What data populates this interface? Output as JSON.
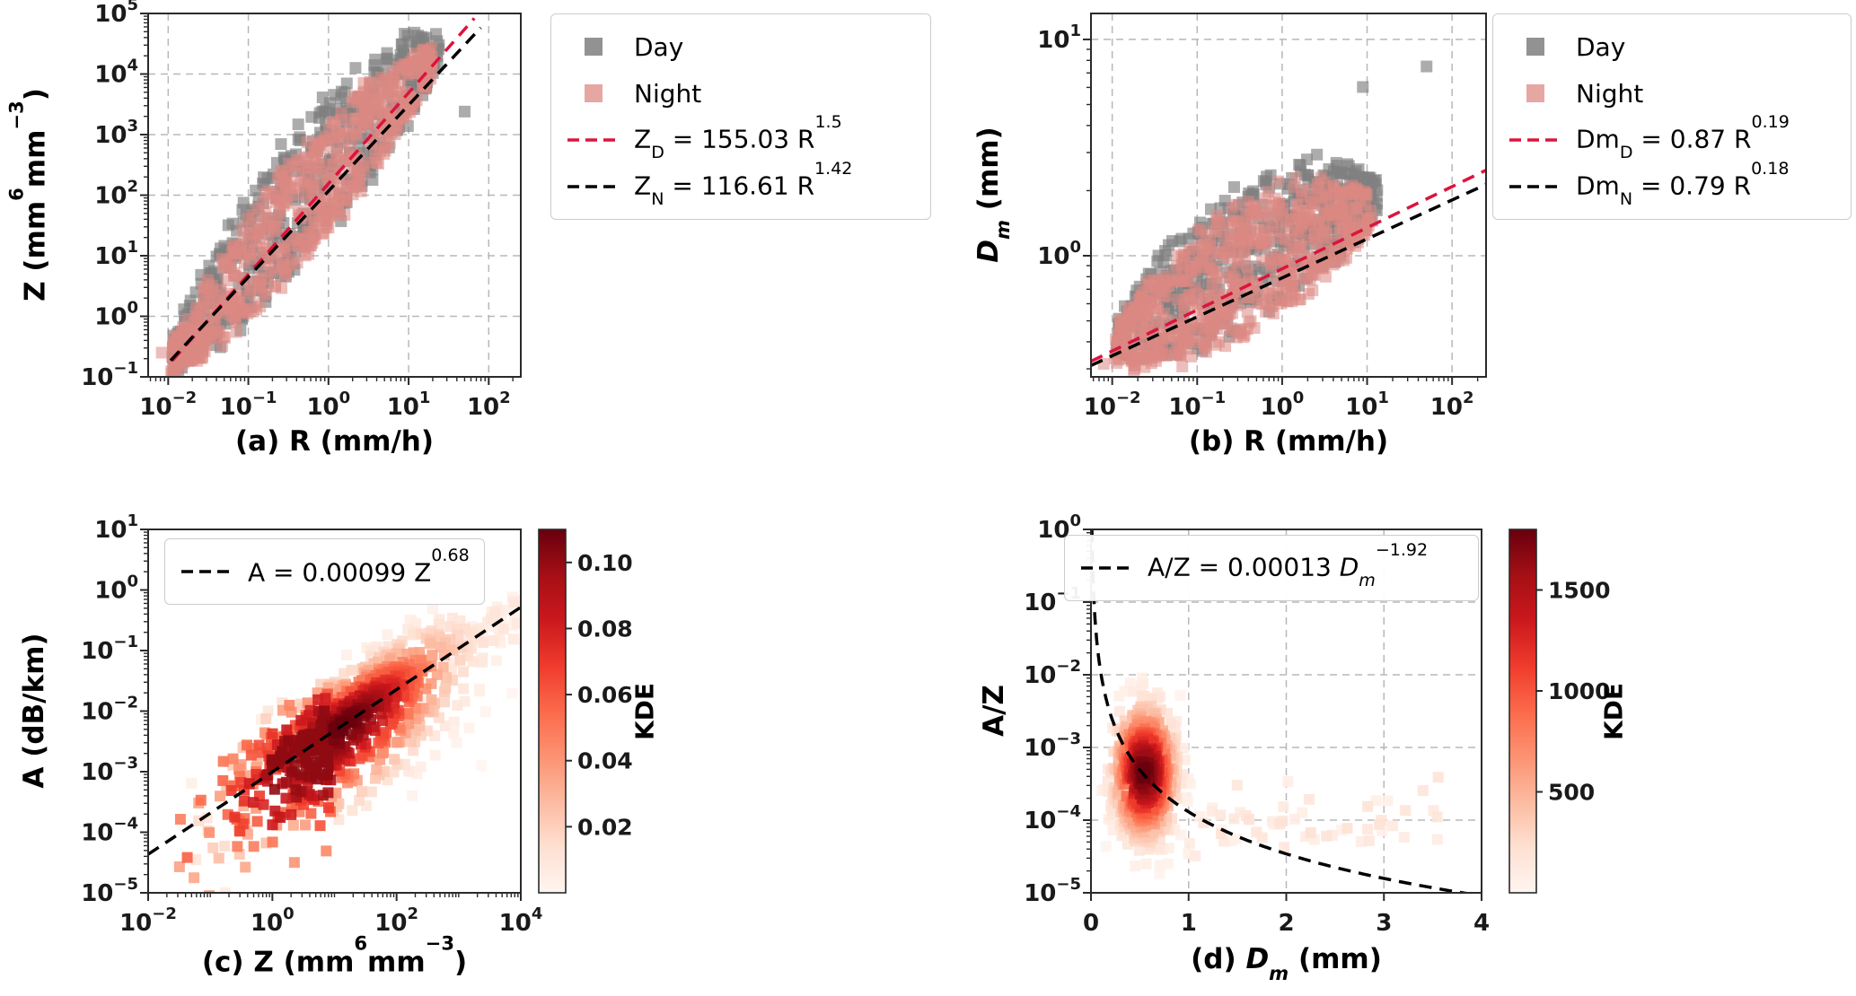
{
  "figure": {
    "background": "#ffffff",
    "grid_color": "#b8b8b8",
    "spine_color": "#2a2a2a",
    "tick_color": "#1a1a1a",
    "colormap_reds": [
      "#fff5f0",
      "#fee0d2",
      "#fcbba1",
      "#fc9272",
      "#fb6a4a",
      "#ef3b2c",
      "#cb181d",
      "#a50f15",
      "#67000d"
    ]
  },
  "chart_data": [
    {
      "id": "a",
      "type": "scatter",
      "xlabel": "(a) R (mm/h)",
      "ylabel": "Z (mm⁶mm⁻³)",
      "ylabel_rich": [
        {
          "t": "Z (mm"
        },
        {
          "sup": "6"
        },
        {
          "t": "mm"
        },
        {
          "sup": "−3"
        },
        {
          "t": ")"
        }
      ],
      "xscale": "log",
      "yscale": "log",
      "xlim_log": [
        -2.25,
        2.4
      ],
      "ylim_log": [
        -1,
        5
      ],
      "xticks_exp": [
        -2,
        -1,
        0,
        1,
        2
      ],
      "yticks_exp": [
        -1,
        0,
        1,
        2,
        3,
        4,
        5
      ],
      "grid": true,
      "series": [
        {
          "name": "Day",
          "color": "#7f7f7f",
          "alpha": 0.65,
          "n": 520,
          "seed": 11,
          "cloud": {
            "p0": [
              -1.95,
              -0.72
            ],
            "p1": [
              1.38,
              4.35
            ],
            "wmax": 1.05,
            "skew": 0.55
          },
          "outliers": [
            [
              1.7,
              3.38
            ]
          ]
        },
        {
          "name": "Night",
          "color": "#dd8984",
          "alpha": 0.55,
          "n": 640,
          "seed": 22,
          "cloud": {
            "p0": [
              -1.97,
              -0.8
            ],
            "p1": [
              1.3,
              4.18
            ],
            "wmax": 0.9,
            "skew": 0.3
          },
          "outliers": [
            [
              -2.08,
              -0.6
            ]
          ]
        }
      ],
      "fits": [
        {
          "coef": 155.03,
          "exp": 1.5,
          "color": "#dc143c",
          "range_log": [
            -1.95,
            1.82
          ],
          "label_rich": [
            {
              "t": "Z"
            },
            {
              "sub": "D"
            },
            {
              "t": " = 155.03 R"
            },
            {
              "sup": "1.5"
            }
          ]
        },
        {
          "coef": 116.61,
          "exp": 1.42,
          "color": "#000000",
          "range_log": [
            -1.97,
            1.9
          ],
          "label_rich": [
            {
              "t": "Z"
            },
            {
              "sub": "N"
            },
            {
              "t": " = 116.61 R"
            },
            {
              "sup": "1.42"
            }
          ]
        }
      ],
      "legend_position": "outside-right"
    },
    {
      "id": "b",
      "type": "scatter",
      "xlabel": "(b) R (mm/h)",
      "ylabel": "Dm (mm)",
      "ylabel_rich": [
        {
          "t": "D",
          "i": true
        },
        {
          "sub": "m",
          "i": true
        },
        {
          "t": " (mm)"
        }
      ],
      "xscale": "log",
      "yscale": "log",
      "xlim_log": [
        -2.25,
        2.4
      ],
      "ylim_log": [
        -0.56,
        1.12
      ],
      "xticks_exp": [
        -2,
        -1,
        0,
        1,
        2
      ],
      "yticks_exp": [
        0,
        1
      ],
      "grid": true,
      "series": [
        {
          "name": "Day",
          "color": "#7f7f7f",
          "alpha": 0.65,
          "n": 520,
          "seed": 77,
          "cloud": {
            "p0": [
              -1.95,
              -0.4
            ],
            "p1": [
              1.12,
              0.26
            ],
            "wmax": 0.3,
            "skew": 0.5
          },
          "outliers": [
            [
              0.95,
              0.78
            ],
            [
              1.7,
              0.875
            ],
            [
              0.55,
              0.33
            ],
            [
              0.68,
              0.38
            ],
            [
              0.8,
              0.35
            ],
            [
              0.9,
              0.4
            ],
            [
              1.0,
              0.36
            ],
            [
              1.1,
              0.33
            ],
            [
              0.45,
              0.3
            ],
            [
              0.72,
              0.31
            ]
          ]
        },
        {
          "name": "Night",
          "color": "#dd8984",
          "alpha": 0.55,
          "n": 640,
          "seed": 88,
          "cloud": {
            "p0": [
              -1.97,
              -0.44
            ],
            "p1": [
              1.05,
              0.2
            ],
            "wmax": 0.3,
            "skew": 0.35
          },
          "outliers": [
            [
              -2.1,
              -0.5
            ],
            [
              0.5,
              0.34
            ],
            [
              0.62,
              0.3
            ]
          ]
        }
      ],
      "fits": [
        {
          "coef": 0.87,
          "exp": 0.19,
          "color": "#dc143c",
          "range_log": [
            -2.25,
            2.4
          ],
          "label_rich": [
            {
              "t": "Dm"
            },
            {
              "sub": "D"
            },
            {
              "t": " = 0.87 R"
            },
            {
              "sup": "0.19"
            }
          ]
        },
        {
          "coef": 0.79,
          "exp": 0.18,
          "color": "#000000",
          "range_log": [
            -2.25,
            2.4
          ],
          "label_rich": [
            {
              "t": "Dm"
            },
            {
              "sub": "N"
            },
            {
              "t": " = 0.79 R"
            },
            {
              "sup": "0.18"
            }
          ]
        }
      ],
      "legend_position": "outside-right"
    },
    {
      "id": "c",
      "type": "scatter-kde",
      "xlabel": "(c) Z (mm⁶mm⁻³)",
      "xlabel_rich": [
        {
          "t": "(c) Z (mm"
        },
        {
          "sup": "6"
        },
        {
          "t": "mm"
        },
        {
          "sup": "−3"
        },
        {
          "t": ")"
        }
      ],
      "ylabel": "A (dB/km)",
      "xscale": "log",
      "yscale": "log",
      "xlim_log": [
        -2,
        4
      ],
      "ylim_log": [
        -5,
        1
      ],
      "xticks_exp": [
        -2,
        0,
        2,
        4
      ],
      "yticks_exp": [
        -5,
        -4,
        -3,
        -2,
        -1,
        0,
        1
      ],
      "grid": false,
      "kde_cloud": {
        "n": 760,
        "seed": 33,
        "center_logx": 1.15,
        "sd_logx": 1.0,
        "sd_up": 0.42,
        "sd_down": 0.72,
        "left_dark_boost": 0.5
      },
      "trail": {
        "n": 55,
        "seed": 44,
        "range_logx": [
          2.1,
          3.95
        ],
        "sd_perp": 0.22
      },
      "fits": [
        {
          "coef": 0.00099,
          "exp": 0.68,
          "color": "#000000",
          "range_log": [
            -2,
            4
          ],
          "label_rich": [
            {
              "t": "A = 0.00099 Z"
            },
            {
              "sup": "0.68"
            }
          ]
        }
      ],
      "colorbar": {
        "label": "KDE",
        "vmin": 0,
        "vmax": 0.11,
        "ticks": [
          0.02,
          0.04,
          0.06,
          0.08,
          0.1
        ],
        "tick_format": "2dp"
      },
      "legend_position": "inside-top"
    },
    {
      "id": "d",
      "type": "scatter-kde",
      "xlabel": "(d) Dm (mm)",
      "xlabel_rich": [
        {
          "t": "(d) "
        },
        {
          "t": "D",
          "i": true
        },
        {
          "sub": "m",
          "i": true
        },
        {
          "t": " (mm)"
        }
      ],
      "ylabel": "A/Z",
      "xscale": "linear",
      "yscale": "log",
      "xlim": [
        0,
        4
      ],
      "ylim_log": [
        -5,
        0
      ],
      "xticks": [
        0,
        1,
        2,
        3,
        4
      ],
      "yticks_exp": [
        0,
        -1,
        -2,
        -3,
        -4,
        -5
      ],
      "grid": true,
      "kde_cloud": {
        "n": 560,
        "seed": 55,
        "center_x": 0.55,
        "sd_x": 0.17,
        "center_logy": -3.35,
        "sd_logy": 0.5
      },
      "tail": {
        "n": 55,
        "seed": 66,
        "x_range": [
          0.95,
          3.6
        ],
        "y_log": -3.95,
        "sd_logy": 0.24
      },
      "fits": [
        {
          "coef": 0.00013,
          "exp": -1.92,
          "color": "#000000",
          "label_rich": [
            {
              "t": "A/Z = 0.00013 "
            },
            {
              "t": "D",
              "i": true
            },
            {
              "sub": "m",
              "i": true
            },
            {
              "sup": "−1.92"
            }
          ]
        }
      ],
      "colorbar": {
        "label": "KDE",
        "vmin": 0,
        "vmax": 1800,
        "ticks": [
          500,
          1000,
          1500
        ]
      },
      "legend_position": "inside-top"
    }
  ]
}
